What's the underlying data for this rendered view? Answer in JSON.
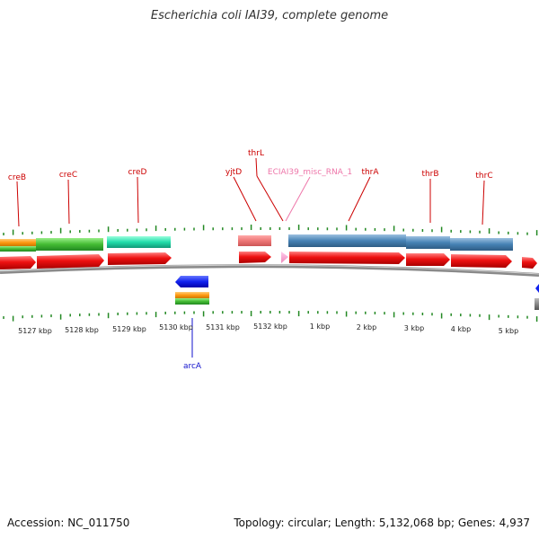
{
  "title": "Escherichia coli IAI39, complete genome",
  "accession": "Accession: NC_011750",
  "summary": "Topology: circular; Length: 5,132,068 bp; Genes: 4,937",
  "colors": {
    "cds": "#ee1111",
    "gene": "#4682b4",
    "misc_rna": "#ee88bb",
    "backbone": "#888888",
    "tick": "#228822",
    "label_top": "#cc0000",
    "label_bottom": "#1111cc",
    "misc_label": "#ee77aa"
  },
  "scale_labels": [
    "5127 kbp",
    "5128 kbp",
    "5129 kbp",
    "5130 kbp",
    "5131 kbp",
    "5132 kbp",
    "1 kbp",
    "2 kbp",
    "3 kbp",
    "4 kbp",
    "5 kbp"
  ],
  "gene_labels": [
    {
      "text": "creB",
      "color": "#cc0000"
    },
    {
      "text": "creC",
      "color": "#cc0000"
    },
    {
      "text": "creD",
      "color": "#cc0000"
    },
    {
      "text": "yjtD",
      "color": "#cc0000"
    },
    {
      "text": "thrL",
      "color": "#cc0000"
    },
    {
      "text": "ECIAI39_misc_RNA_1",
      "color": "#ee77aa"
    },
    {
      "text": "thrA",
      "color": "#cc0000"
    },
    {
      "text": "thrB",
      "color": "#cc0000"
    },
    {
      "text": "thrC",
      "color": "#cc0000"
    },
    {
      "text": "arcA",
      "color": "#1111cc"
    }
  ]
}
